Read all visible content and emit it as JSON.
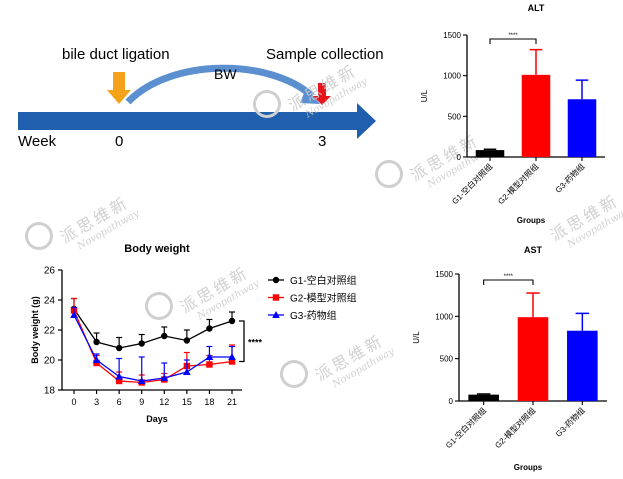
{
  "timeline": {
    "label_ligation": "bile duct ligation",
    "label_collection": "Sample collection",
    "label_bw": "BW",
    "label_week": "Week",
    "tick_0": "0",
    "tick_3": "3",
    "colors": {
      "arrow": "#1f5fae",
      "ligation_marker": "#f5a21b",
      "collection_marker": "#e8141c",
      "curve": "#5b8fd0"
    }
  },
  "watermark": {
    "chinese": "派思维新",
    "english": "Novopathway"
  },
  "chart_data": [
    {
      "id": "body_weight",
      "type": "line",
      "title": "Body weight",
      "xlabel": "Days",
      "ylabel": "Body weight (g)",
      "x": [
        0,
        3,
        6,
        9,
        12,
        15,
        18,
        21
      ],
      "ylim": [
        18,
        26
      ],
      "yticks": [
        18,
        20,
        22,
        24,
        26
      ],
      "series": [
        {
          "name": "G1-空白对照组",
          "color": "#000000",
          "marker": "circle",
          "values": [
            23.4,
            21.2,
            20.8,
            21.1,
            21.6,
            21.3,
            22.1,
            22.6
          ],
          "errors": [
            0.7,
            0.6,
            0.7,
            0.6,
            0.6,
            0.7,
            0.6,
            0.6
          ]
        },
        {
          "name": "G2-模型对照组",
          "color": "#ff0000",
          "marker": "square",
          "values": [
            23.3,
            19.8,
            18.6,
            18.5,
            18.7,
            19.6,
            19.7,
            19.9
          ],
          "errors": [
            0.8,
            0.5,
            0.6,
            0.5,
            0.4,
            0.9,
            0.6,
            1.1
          ]
        },
        {
          "name": "G3-药物组",
          "color": "#0000ff",
          "marker": "triangle",
          "values": [
            23.0,
            20.0,
            18.9,
            18.6,
            18.8,
            19.2,
            20.2,
            20.2
          ],
          "errors": [
            0.5,
            0.4,
            1.2,
            1.6,
            1.0,
            0.8,
            0.7,
            0.7
          ]
        }
      ],
      "significance": "****"
    },
    {
      "id": "alt",
      "type": "bar",
      "title": "ALT",
      "xlabel": "Groups",
      "ylabel": "U/L",
      "ylim": [
        0,
        1500
      ],
      "yticks": [
        0,
        500,
        1000,
        1500
      ],
      "categories": [
        "G1-空白对照组",
        "G2-模型对照组",
        "G3-药物组"
      ],
      "values": [
        85,
        1010,
        710
      ],
      "errors": [
        10,
        310,
        235
      ],
      "colors": [
        "#000000",
        "#ff0000",
        "#0000ff"
      ],
      "significance": "****"
    },
    {
      "id": "ast",
      "type": "bar",
      "title": "AST",
      "xlabel": "Groups",
      "ylabel": "U/L",
      "ylim": [
        0,
        1500
      ],
      "yticks": [
        0,
        500,
        1000,
        1500
      ],
      "categories": [
        "G1-空白对照组",
        "G2-模型对照组",
        "G3-药物组"
      ],
      "values": [
        75,
        990,
        830
      ],
      "errors": [
        8,
        285,
        205
      ],
      "colors": [
        "#000000",
        "#ff0000",
        "#0000ff"
      ],
      "significance": "****"
    }
  ]
}
